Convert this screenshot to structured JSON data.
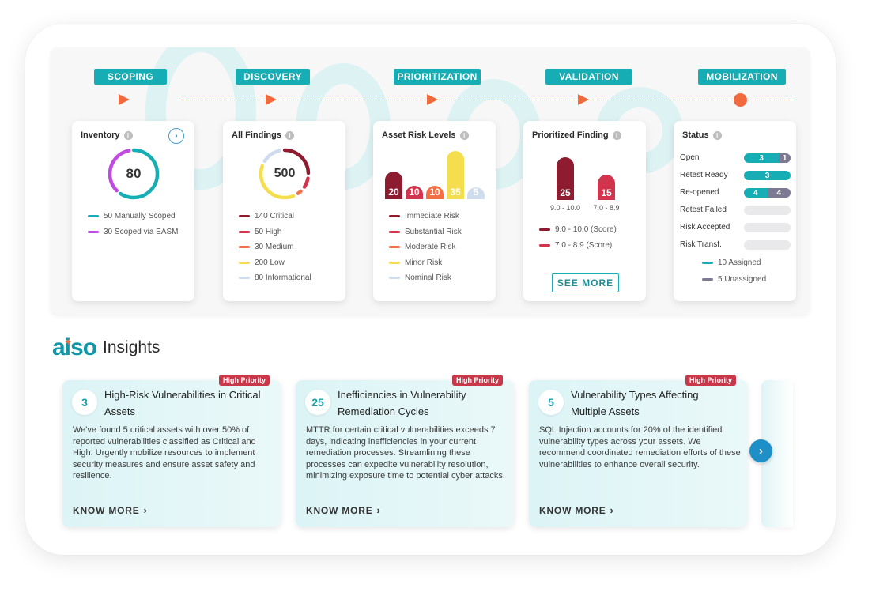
{
  "pipeline": {
    "stages": [
      "SCOPING",
      "DISCOVERY",
      "PRIORITIZATION",
      "VALIDATION",
      "MOBILIZATION"
    ]
  },
  "inventory": {
    "title": "Inventory",
    "info_icon": "info-icon",
    "arrow_icon": "chevron-right-icon",
    "total": "80",
    "ring": [
      {
        "value": 50,
        "color": "#16aeb4"
      },
      {
        "value": 30,
        "color": "#c04be0"
      }
    ],
    "legend": [
      {
        "label": "50 Manually Scoped",
        "color": "#16aeb4"
      },
      {
        "label": "30 Scoped via EASM",
        "color": "#c04be0"
      }
    ]
  },
  "findings": {
    "title": "All Findings",
    "total": "500",
    "ring": [
      {
        "value": 140,
        "color": "#8e1c30"
      },
      {
        "value": 50,
        "color": "#d1344c"
      },
      {
        "value": 30,
        "color": "#f36f45"
      },
      {
        "value": 200,
        "color": "#f5de4e"
      },
      {
        "value": 80,
        "color": "#cfdcee"
      }
    ],
    "legend": [
      {
        "label": "140 Critical",
        "color": "#8e1c30"
      },
      {
        "label": "50 High",
        "color": "#d1344c"
      },
      {
        "label": "30 Medium",
        "color": "#f36f45"
      },
      {
        "label": "200 Low",
        "color": "#f5de4e"
      },
      {
        "label": "80 Informational",
        "color": "#cfdcee"
      }
    ]
  },
  "asset_risk": {
    "title": "Asset Risk Levels",
    "bars": [
      {
        "value": 20,
        "label": "20",
        "color": "#8e1c30"
      },
      {
        "value": 10,
        "label": "10",
        "color": "#d1344c"
      },
      {
        "value": 10,
        "label": "10",
        "color": "#f36f45"
      },
      {
        "value": 35,
        "label": "35",
        "color": "#f5de4e"
      },
      {
        "value": 5,
        "label": "5",
        "color": "#cfdcee"
      }
    ],
    "legend": [
      {
        "label": "Immediate Risk",
        "color": "#8e1c30"
      },
      {
        "label": "Substantial Risk",
        "color": "#d1344c"
      },
      {
        "label": "Moderate Risk",
        "color": "#f36f45"
      },
      {
        "label": "Minor Risk",
        "color": "#f5de4e"
      },
      {
        "label": "Nominal Risk",
        "color": "#cfdcee"
      }
    ]
  },
  "prioritized": {
    "title": "Prioritized Finding",
    "bars": [
      {
        "value": 25,
        "label": "25",
        "range": "9.0 - 10.0",
        "color": "#8e1c30"
      },
      {
        "value": 15,
        "label": "15",
        "range": "7.0 - 8.9",
        "color": "#d1344c"
      }
    ],
    "legend": [
      {
        "label": "9.0 - 10.0 (Score)",
        "color": "#8e1c30"
      },
      {
        "label": "7.0 - 8.9 (Score)",
        "color": "#d1344c"
      }
    ],
    "see_more": "SEE MORE"
  },
  "status": {
    "title": "Status",
    "rows": [
      {
        "label": "Open",
        "assigned": 3,
        "unassigned": 1,
        "a_text": "3",
        "u_text": "1"
      },
      {
        "label": "Retest Ready",
        "assigned": 3,
        "unassigned": 0,
        "a_text": "3",
        "u_text": ""
      },
      {
        "label": "Re-opened",
        "assigned": 4,
        "unassigned": 4,
        "a_text": "4",
        "u_text": "4"
      },
      {
        "label": "Retest Failed",
        "assigned": 0,
        "unassigned": 0,
        "a_text": "",
        "u_text": ""
      },
      {
        "label": "Risk Accepted",
        "assigned": 0,
        "unassigned": 0,
        "a_text": "",
        "u_text": ""
      },
      {
        "label": "Risk Transf.",
        "assigned": 0,
        "unassigned": 0,
        "a_text": "",
        "u_text": ""
      }
    ],
    "legend": [
      {
        "label": "10 Assigned",
        "color": "#16aeb4"
      },
      {
        "label": "5 Unassigned",
        "color": "#7c7a93"
      }
    ]
  },
  "insights": {
    "logo": "aiso",
    "heading": "Insights",
    "cards": [
      {
        "badge": "High Priority",
        "number": "3",
        "title": "High-Risk Vulnerabilities in Critical Assets",
        "description": "We've found 5 critical assets with over 50% of reported vulnerabilities classified as Critical and High. Urgently mobilize resources to implement security measures and ensure asset safety and resilience.",
        "cta": "KNOW MORE"
      },
      {
        "badge": "High Priority",
        "number": "25",
        "title": "Inefficiencies in Vulnerability Remediation Cycles",
        "description": "MTTR for certain critical vulnerabilities exceeds 7 days, indicating inefficiencies in your current remediation processes. Streamlining these processes can expedite vulnerability resolution, minimizing exposure time to potential cyber attacks.",
        "cta": "KNOW MORE"
      },
      {
        "badge": "High Priority",
        "number": "5",
        "title": "Vulnerability Types Affecting Multiple Assets",
        "description": "SQL Injection accounts for 20% of the identified vulnerability types across your assets. We recommend coordinated remediation efforts of these vulnerabilities to enhance overall security.",
        "cta": "KNOW MORE"
      }
    ],
    "next_icon": "chevron-right-icon"
  }
}
